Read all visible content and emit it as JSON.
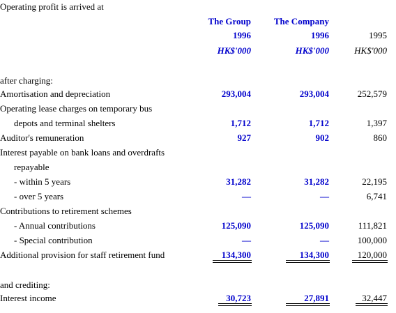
{
  "title": "Operating profit is arrived at",
  "columns": [
    {
      "name": "The Group",
      "year": "1996",
      "unit": "HK$'000"
    },
    {
      "name": "The Company",
      "year": "1996",
      "unit": "HK$'000"
    },
    {
      "year": "1995",
      "unit": "HK$'000"
    }
  ],
  "sections": [
    {
      "heading": "after charging:",
      "rows": [
        {
          "label": "Amortisation and depreciation",
          "values": [
            "293,004",
            "293,004",
            "252,579"
          ]
        },
        {
          "label": "Operating lease charges on temporary bus"
        },
        {
          "label": "depots and terminal shelters",
          "values": [
            "1,712",
            "1,712",
            "1,397"
          ]
        },
        {
          "label": "Auditor's remuneration",
          "values": [
            "927",
            "902",
            "860"
          ]
        },
        {
          "label": "Interest payable on bank loans and overdrafts"
        },
        {
          "label": "repayable"
        },
        {
          "label": "- within 5 years",
          "values": [
            "31,282",
            "31,282",
            "22,195"
          ]
        },
        {
          "label": "- over 5 years",
          "values": [
            "—",
            "—",
            "6,741"
          ]
        },
        {
          "label": "Contributions to retirement schemes"
        },
        {
          "label": "- Annual contributions",
          "values": [
            "125,090",
            "125,090",
            "111,821"
          ]
        },
        {
          "label": "- Special contribution",
          "values": [
            "—",
            "—",
            "100,000"
          ]
        },
        {
          "label": "Additional provision for staff retirement fund",
          "values": [
            "134,300",
            "134,300",
            "120,000"
          ]
        }
      ]
    },
    {
      "heading": "and crediting:",
      "rows": [
        {
          "label": "Interest income",
          "values": [
            "30,723",
            "27,891",
            "32,447"
          ]
        }
      ]
    }
  ]
}
